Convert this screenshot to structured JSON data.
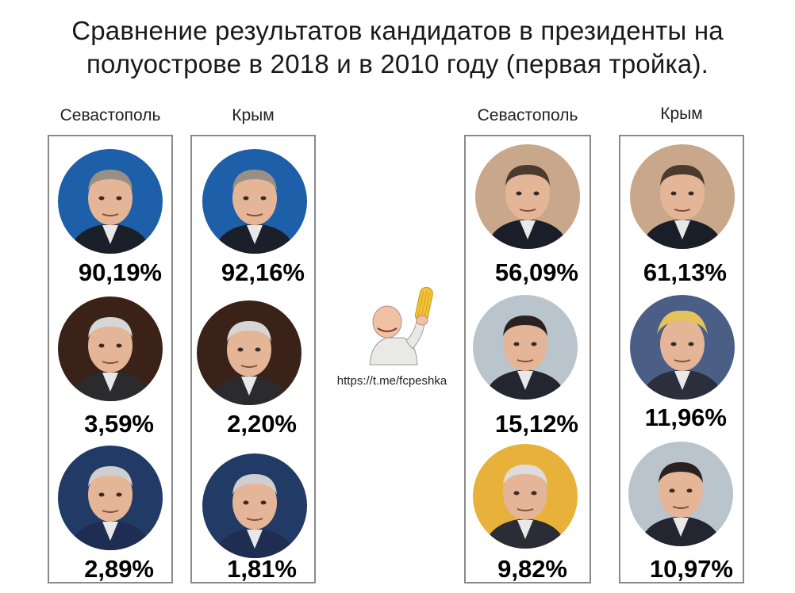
{
  "title_line1": "Сравнение результатов кандидатов в президенты на",
  "title_line2": "полуострове в 2018 и в 2010 году (первая тройка).",
  "link": "https://t.me/fcpeshka",
  "columns": [
    {
      "label": "Севастополь",
      "entries": [
        {
          "value": "90,19%",
          "portrait": "putin",
          "bg": "#1d5fa8"
        },
        {
          "value": "3,59%",
          "portrait": "grudinin",
          "bg": "#3a2218"
        },
        {
          "value": "2,89%",
          "portrait": "zhirinovsky",
          "bg": "#223a66"
        }
      ]
    },
    {
      "label": "Крым",
      "entries": [
        {
          "value": "92,16%",
          "portrait": "putin",
          "bg": "#1d5fa8"
        },
        {
          "value": "2,20%",
          "portrait": "grudinin",
          "bg": "#3a2218"
        },
        {
          "value": "1,81%",
          "portrait": "zhirinovsky",
          "bg": "#223a66"
        }
      ]
    },
    {
      "label": "Севастополь",
      "entries": [
        {
          "value": "56,09%",
          "portrait": "yanukovych",
          "bg": "#c9a78a"
        },
        {
          "value": "15,12%",
          "portrait": "tigipko",
          "bg": "#b9c4cc"
        },
        {
          "value": "9,82%",
          "portrait": "symonenko",
          "bg": "#e8b13a"
        }
      ]
    },
    {
      "label": "Крым",
      "entries": [
        {
          "value": "61,13%",
          "portrait": "yanukovych",
          "bg": "#c9a78a"
        },
        {
          "value": "11,96%",
          "portrait": "tymoshenko",
          "bg": "#4b5f86"
        },
        {
          "value": "10,97%",
          "portrait": "tigipko",
          "bg": "#b9c4cc"
        }
      ]
    }
  ]
}
